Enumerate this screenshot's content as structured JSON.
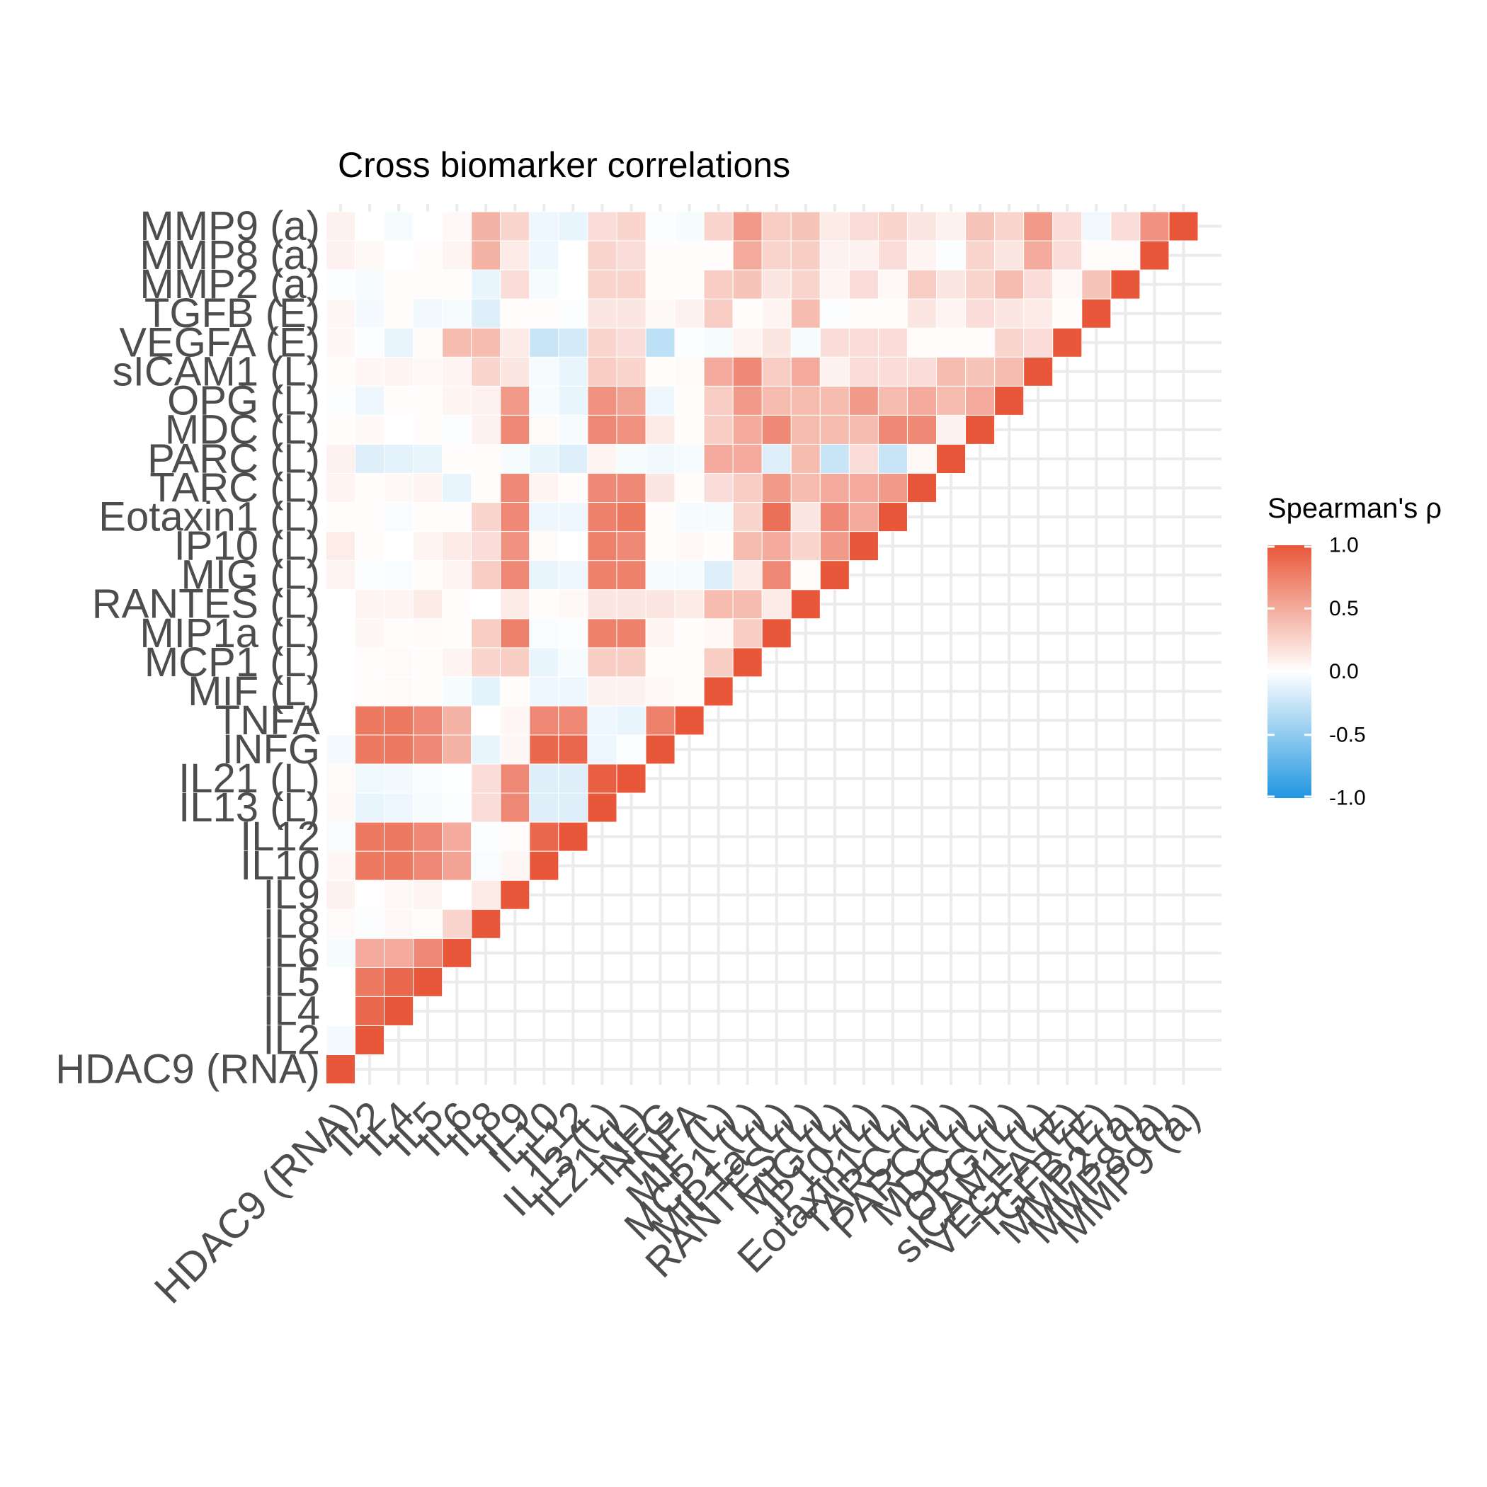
{
  "chart_data": {
    "type": "heatmap",
    "title": "Cross biomarker correlations",
    "xlabel": "",
    "ylabel": "",
    "variables": [
      "HDAC9 (RNA)",
      "IL2",
      "IL4",
      "IL5",
      "IL6",
      "IL8",
      "IL9",
      "IL10",
      "IL12",
      "IL13 (L)",
      "IL21 (L)",
      "INFG",
      "TNFA",
      "MIF (L)",
      "MCP1 (L)",
      "MIP1a (L)",
      "RANTES (L)",
      "MIG (L)",
      "IP10 (L)",
      "Eotaxin1 (L)",
      "TARC (L)",
      "PARC (L)",
      "MDC (L)",
      "OPG (L)",
      "sICAM1 (L)",
      "VEGFA (E)",
      "TGFB (E)",
      "MMP2 (a)",
      "MMP8 (a)",
      "MMP9 (a)"
    ],
    "values": [
      [
        1.0,
        -0.05,
        0,
        0,
        -0.04,
        0.03,
        0.08,
        0.05,
        -0.03,
        0.04,
        0.03,
        -0.05,
        0,
        0,
        0,
        0,
        0,
        0.07,
        0.11,
        0.02,
        0.06,
        0.08,
        0.02,
        -0.02,
        0.02,
        0.05,
        0.05,
        -0.02,
        0.08,
        0.08
      ],
      [
        0,
        1.0,
        0.9,
        0.8,
        0.5,
        -0.02,
        0.01,
        0.8,
        0.8,
        -0.1,
        -0.07,
        0.8,
        0.8,
        0.02,
        0.02,
        0.05,
        0.06,
        -0.02,
        0.02,
        0.02,
        0.02,
        -0.15,
        0.04,
        -0.08,
        0.05,
        -0.02,
        -0.05,
        -0.04,
        0.04,
        0
      ],
      [
        0,
        0,
        1.0,
        0.9,
        0.5,
        0.04,
        0.04,
        0.8,
        0.8,
        -0.08,
        -0.06,
        0.8,
        0.8,
        0.03,
        0.03,
        0.02,
        0.06,
        -0.03,
        0,
        -0.03,
        0.04,
        -0.12,
        0,
        0.02,
        0.06,
        -0.1,
        0.02,
        0.02,
        0,
        -0.04
      ],
      [
        0,
        0,
        0,
        1.0,
        0.7,
        0.02,
        0.06,
        0.7,
        0.7,
        -0.04,
        -0.03,
        0.7,
        0.7,
        0.02,
        0.02,
        0.03,
        0.12,
        0.02,
        0.06,
        0.02,
        0.06,
        -0.1,
        0.02,
        0.02,
        0.04,
        0.03,
        -0.06,
        0.02,
        0.02,
        0
      ],
      [
        0,
        0,
        0,
        0,
        1.0,
        0.25,
        0,
        0.55,
        0.5,
        -0.02,
        -0.01,
        0.45,
        0.45,
        -0.04,
        0.06,
        0.02,
        0.02,
        0.06,
        0.12,
        0.02,
        -0.1,
        0.02,
        -0.02,
        0.06,
        0.06,
        0.4,
        -0.04,
        0.02,
        0.06,
        0.04
      ],
      [
        0,
        0,
        0,
        0,
        0,
        1.0,
        0.12,
        -0.03,
        -0.02,
        0.2,
        0.2,
        -0.1,
        0,
        -0.12,
        0.25,
        0.3,
        0,
        0.3,
        0.2,
        0.25,
        0.02,
        0.02,
        0.08,
        0.08,
        0.25,
        0.4,
        -0.15,
        -0.1,
        0.45,
        0.45
      ],
      [
        0,
        0,
        0,
        0,
        0,
        0,
        1.0,
        0.05,
        0.02,
        0.7,
        0.7,
        0.05,
        0.05,
        0.02,
        0.3,
        0.75,
        0.12,
        0.7,
        0.65,
        0.7,
        0.7,
        -0.04,
        0.7,
        0.6,
        0.15,
        0.12,
        0.02,
        0.2,
        0.12,
        0.25
      ],
      [
        0,
        0,
        0,
        0,
        0,
        0,
        0,
        1.0,
        0.9,
        -0.15,
        -0.15,
        0.9,
        0.7,
        -0.08,
        -0.1,
        -0.03,
        0.02,
        -0.1,
        0.03,
        -0.08,
        0.06,
        -0.1,
        0.03,
        -0.04,
        -0.04,
        -0.25,
        0.02,
        -0.04,
        -0.08,
        -0.08
      ],
      [
        0,
        0,
        0,
        0,
        0,
        0,
        0,
        0,
        1.0,
        -0.15,
        -0.15,
        0.9,
        0.7,
        -0.08,
        -0.04,
        -0.02,
        0.04,
        -0.08,
        0,
        -0.08,
        0.02,
        -0.15,
        -0.04,
        -0.1,
        -0.1,
        -0.2,
        -0.02,
        0,
        0,
        -0.1
      ],
      [
        0,
        0,
        0,
        0,
        0,
        0,
        0,
        0,
        0,
        1.0,
        0.95,
        -0.08,
        -0.08,
        0.08,
        0.3,
        0.75,
        0.15,
        0.75,
        0.75,
        0.75,
        0.7,
        0.06,
        0.7,
        0.65,
        0.3,
        0.25,
        0.15,
        0.25,
        0.25,
        0.2
      ],
      [
        0,
        0,
        0,
        0,
        0,
        0,
        0,
        0,
        0,
        0,
        1.0,
        -0.02,
        -0.1,
        0.08,
        0.3,
        0.75,
        0.15,
        0.75,
        0.7,
        0.8,
        0.7,
        -0.04,
        0.65,
        0.55,
        0.25,
        0.2,
        0.15,
        0.25,
        0.2,
        0.25
      ],
      [
        0,
        0,
        0,
        0,
        0,
        0,
        0,
        0,
        0,
        0,
        0,
        1.0,
        0.75,
        0.04,
        0.02,
        0.06,
        0.15,
        -0.04,
        0.02,
        0.02,
        0.15,
        -0.06,
        0.12,
        -0.08,
        0.02,
        -0.3,
        0.04,
        0.02,
        0.02,
        -0.02
      ],
      [
        0,
        0,
        0,
        0,
        0,
        0,
        0,
        0,
        0,
        0,
        0,
        0,
        1.0,
        0.02,
        0.02,
        0.02,
        0.12,
        -0.04,
        0.04,
        -0.04,
        0.02,
        -0.04,
        0.02,
        0.02,
        0.03,
        -0.02,
        0.08,
        0.02,
        0.02,
        -0.04
      ],
      [
        0,
        0,
        0,
        0,
        0,
        0,
        0,
        0,
        0,
        0,
        0,
        0,
        0,
        1.0,
        0.3,
        0.04,
        0.4,
        -0.15,
        0.02,
        -0.04,
        0.2,
        0.5,
        0.3,
        0.3,
        0.5,
        -0.04,
        0.3,
        0.3,
        0.02,
        0.25
      ],
      [
        0,
        0,
        0,
        0,
        0,
        0,
        0,
        0,
        0,
        0,
        0,
        0,
        0,
        0,
        1.0,
        0.3,
        0.4,
        0.12,
        0.4,
        0.25,
        0.3,
        0.5,
        0.5,
        0.6,
        0.7,
        0.06,
        0.02,
        0.35,
        0.5,
        0.6
      ],
      [
        0,
        0,
        0,
        0,
        0,
        0,
        0,
        0,
        0,
        0,
        0,
        0,
        0,
        0,
        0,
        1.0,
        0.12,
        0.7,
        0.5,
        0.85,
        0.6,
        -0.15,
        0.7,
        0.4,
        0.3,
        0.15,
        0.06,
        0.15,
        0.25,
        0.3
      ],
      [
        0,
        0,
        0,
        0,
        0,
        0,
        0,
        0,
        0,
        0,
        0,
        0,
        0,
        0,
        0,
        0,
        1.0,
        0.02,
        0.25,
        0.15,
        0.4,
        0.4,
        0.4,
        0.4,
        0.5,
        -0.04,
        0.4,
        0.25,
        0.3,
        0.35
      ],
      [
        0,
        0,
        0,
        0,
        0,
        0,
        0,
        0,
        0,
        0,
        0,
        0,
        0,
        0,
        0,
        0,
        0,
        1.0,
        0.6,
        0.7,
        0.5,
        -0.25,
        0.4,
        0.4,
        0.08,
        0.2,
        -0.02,
        0.06,
        0.08,
        0.12
      ],
      [
        0,
        0,
        0,
        0,
        0,
        0,
        0,
        0,
        0,
        0,
        0,
        0,
        0,
        0,
        0,
        0,
        0,
        0,
        1.0,
        0.5,
        0.5,
        0.2,
        0.4,
        0.6,
        0.2,
        0.2,
        0.02,
        0.2,
        0.08,
        0.2
      ],
      [
        0,
        0,
        0,
        0,
        0,
        0,
        0,
        0,
        0,
        0,
        0,
        0,
        0,
        0,
        0,
        0,
        0,
        0,
        0,
        1.0,
        0.6,
        -0.25,
        0.7,
        0.4,
        0.2,
        0.2,
        0.02,
        0.04,
        0.2,
        0.25
      ],
      [
        0,
        0,
        0,
        0,
        0,
        0,
        0,
        0,
        0,
        0,
        0,
        0,
        0,
        0,
        0,
        0,
        0,
        0,
        0,
        0,
        1.0,
        0.04,
        0.7,
        0.5,
        0.2,
        0.02,
        0.15,
        0.3,
        0.06,
        0.15
      ],
      [
        0,
        0,
        0,
        0,
        0,
        0,
        0,
        0,
        0,
        0,
        0,
        0,
        0,
        0,
        0,
        0,
        0,
        0,
        0,
        0,
        0,
        1.0,
        0.08,
        0.4,
        0.4,
        0.02,
        0.06,
        0.15,
        -0.02,
        0.08
      ],
      [
        0,
        0,
        0,
        0,
        0,
        0,
        0,
        0,
        0,
        0,
        0,
        0,
        0,
        0,
        0,
        0,
        0,
        0,
        0,
        0,
        0,
        0,
        1.0,
        0.5,
        0.35,
        0.02,
        0.2,
        0.25,
        0.25,
        0.35
      ],
      [
        0,
        0,
        0,
        0,
        0,
        0,
        0,
        0,
        0,
        0,
        0,
        0,
        0,
        0,
        0,
        0,
        0,
        0,
        0,
        0,
        0,
        0,
        0,
        1.0,
        0.4,
        0.25,
        0.15,
        0.4,
        0.15,
        0.25
      ],
      [
        0,
        0,
        0,
        0,
        0,
        0,
        0,
        0,
        0,
        0,
        0,
        0,
        0,
        0,
        0,
        0,
        0,
        0,
        0,
        0,
        0,
        0,
        0,
        0,
        1.0,
        0.2,
        0.12,
        0.2,
        0.5,
        0.6
      ],
      [
        0,
        0,
        0,
        0,
        0,
        0,
        0,
        0,
        0,
        0,
        0,
        0,
        0,
        0,
        0,
        0,
        0,
        0,
        0,
        0,
        0,
        0,
        0,
        0,
        0,
        1.0,
        0.02,
        0.04,
        0.2,
        0.2
      ],
      [
        0,
        0,
        0,
        0,
        0,
        0,
        0,
        0,
        0,
        0,
        0,
        0,
        0,
        0,
        0,
        0,
        0,
        0,
        0,
        0,
        0,
        0,
        0,
        0,
        0,
        0,
        1.0,
        0.35,
        0.02,
        -0.06
      ],
      [
        0,
        0,
        0,
        0,
        0,
        0,
        0,
        0,
        0,
        0,
        0,
        0,
        0,
        0,
        0,
        0,
        0,
        0,
        0,
        0,
        0,
        0,
        0,
        0,
        0,
        0,
        0,
        1.0,
        0.02,
        0.2
      ],
      [
        0,
        0,
        0,
        0,
        0,
        0,
        0,
        0,
        0,
        0,
        0,
        0,
        0,
        0,
        0,
        0,
        0,
        0,
        0,
        0,
        0,
        0,
        0,
        0,
        0,
        0,
        0,
        0,
        1.0,
        0.65
      ],
      [
        0,
        0,
        0,
        0,
        0,
        0,
        0,
        0,
        0,
        0,
        0,
        0,
        0,
        0,
        0,
        0,
        0,
        0,
        0,
        0,
        0,
        0,
        0,
        0,
        0,
        0,
        0,
        0,
        0,
        1.0
      ]
    ],
    "color_scale": {
      "low": "#2196e0",
      "mid": "#ffffff",
      "high": "#e8573a",
      "limits": [
        -1,
        1
      ]
    },
    "legend": {
      "title": "Spearman's ρ",
      "position": "right",
      "breaks": [
        "1.0",
        "0.5",
        "0.0",
        "-0.5",
        "-1.0"
      ]
    },
    "grid": true
  }
}
